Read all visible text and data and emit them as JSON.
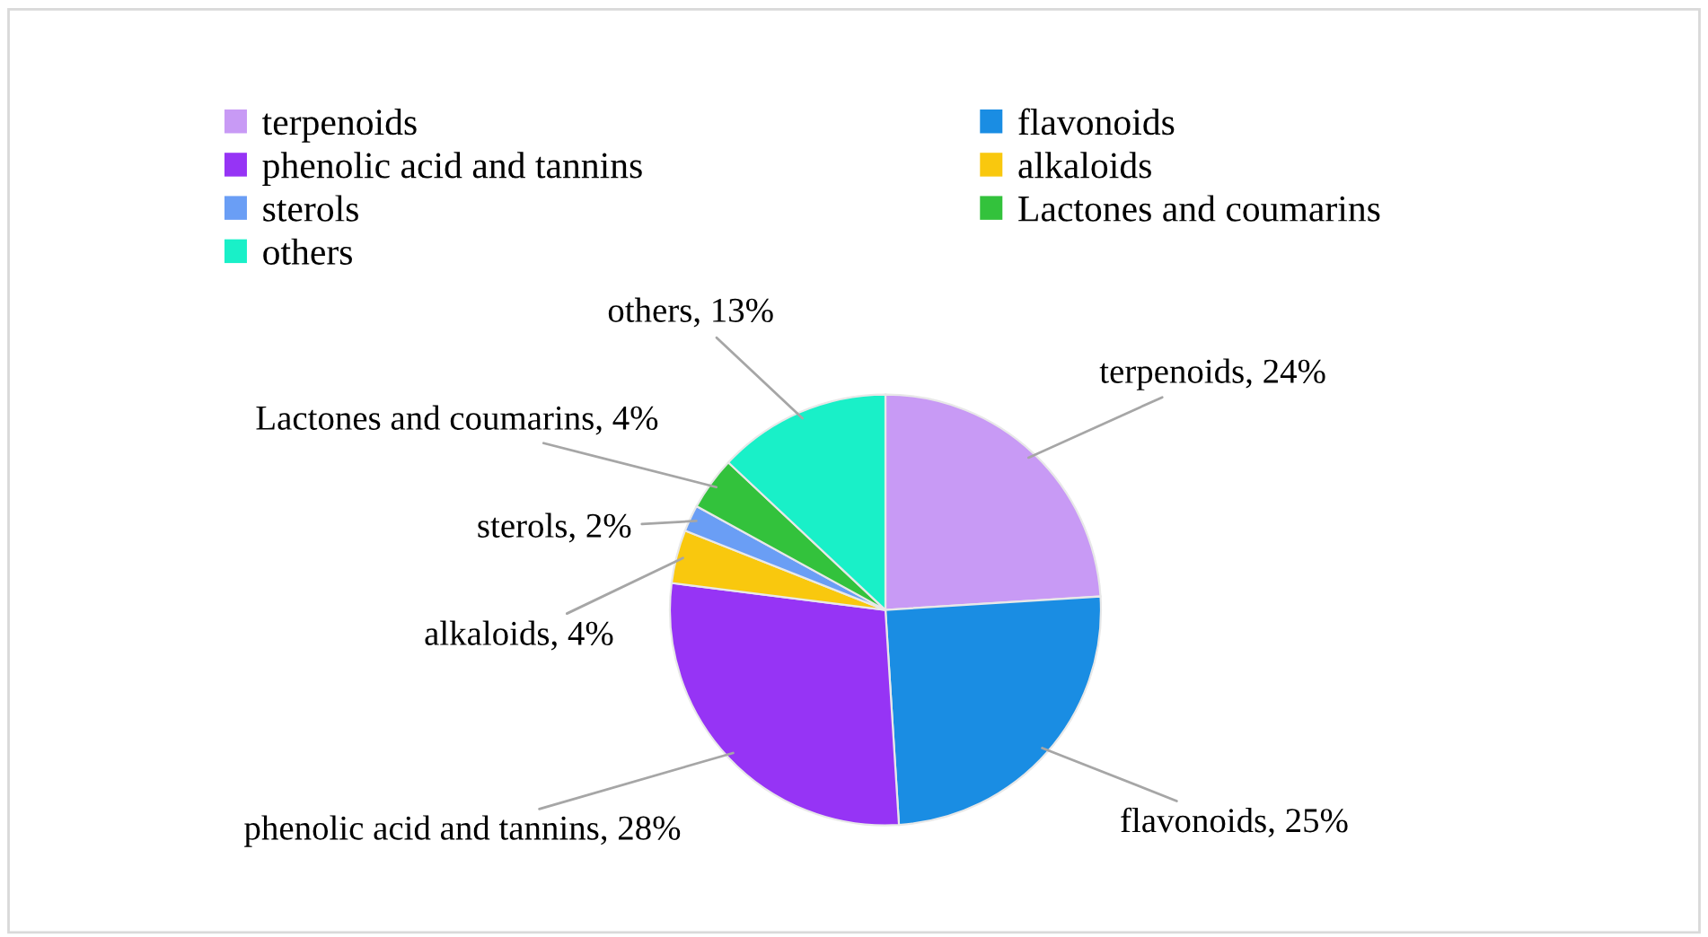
{
  "chart_data": {
    "type": "pie",
    "categories": [
      "terpenoids",
      "flavonoids",
      "phenolic acid and tannins",
      "alkaloids",
      "sterols",
      "Lactones and coumarins",
      "others"
    ],
    "values": [
      24,
      25,
      28,
      4,
      2,
      4,
      13
    ],
    "colors": [
      "#c89af5",
      "#1a8de3",
      "#9634f5",
      "#f9c80e",
      "#6a9ef5",
      "#33c23c",
      "#19f0c8"
    ],
    "value_labels": [
      "terpenoids, 24%",
      "flavonoids, 25%",
      "phenolic acid and tannins, 28%",
      "alkaloids, 4%",
      "sterols, 2%",
      "Lactones and coumarins, 4%",
      "others, 13%"
    ],
    "legend": "top"
  }
}
